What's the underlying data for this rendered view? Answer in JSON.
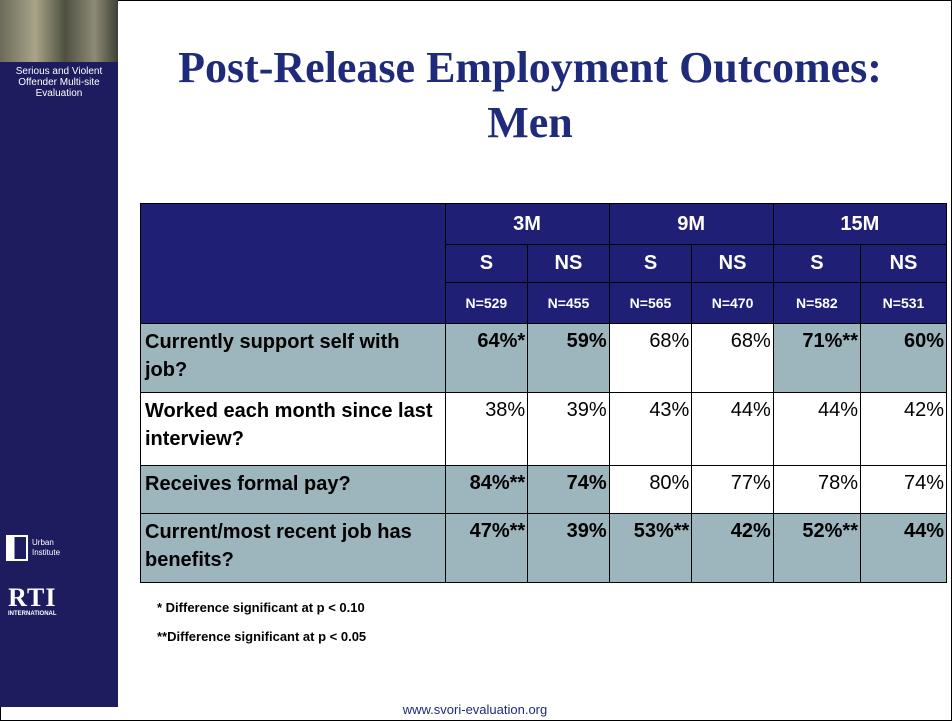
{
  "sidebar": {
    "caption": "Serious and Violent Offender Multi-site Evaluation",
    "urban_logo": "Urban Institute",
    "rti_logo": "RTI",
    "rti_sub": "INTERNATIONAL"
  },
  "title": "Post-Release Employment Outcomes: Men",
  "table": {
    "periods": [
      "3M",
      "9M",
      "15M"
    ],
    "groups": [
      "S",
      "NS",
      "S",
      "NS",
      "S",
      "NS"
    ],
    "n": [
      "N=529",
      "N=455",
      "N=565",
      "N=470",
      "N=582",
      "N=531"
    ],
    "rows": [
      {
        "label": "Currently support self with job?",
        "cells": [
          "64%*",
          "59%",
          "68%",
          "68%",
          "71%**",
          "60%"
        ],
        "highlight": [
          true,
          true,
          true,
          false,
          false,
          true,
          true
        ]
      },
      {
        "label": "Worked each month since last interview?",
        "cells": [
          "38%",
          "39%",
          "43%",
          "44%",
          "44%",
          "42%"
        ],
        "highlight": [
          false,
          false,
          false,
          false,
          false,
          false,
          false
        ]
      },
      {
        "label": "Receives formal pay?",
        "cells": [
          "84%**",
          "74%",
          "80%",
          "77%",
          "78%",
          "74%"
        ],
        "highlight": [
          true,
          true,
          true,
          false,
          false,
          false,
          false
        ]
      },
      {
        "label": "Current/most recent job has benefits?",
        "cells": [
          "47%**",
          "39%",
          "53%**",
          "42%",
          "52%**",
          "44%"
        ],
        "highlight": [
          true,
          true,
          true,
          true,
          true,
          true,
          true
        ]
      }
    ]
  },
  "footnotes": [
    "* Difference significant at p < 0.10",
    "**Difference significant at p < 0.05"
  ],
  "footer_url": "www.svori-evaluation.org"
}
